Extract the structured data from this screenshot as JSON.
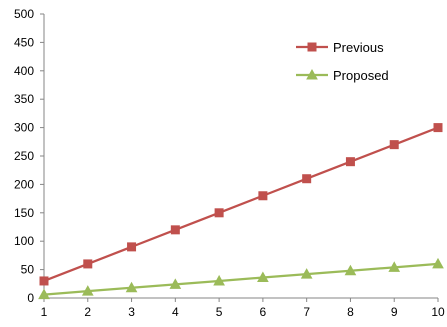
{
  "chart_data": {
    "type": "line",
    "x": [
      1,
      2,
      3,
      4,
      5,
      6,
      7,
      8,
      9,
      10
    ],
    "xlim": [
      1,
      10
    ],
    "ylim": [
      0,
      500
    ],
    "y_ticks": [
      0,
      50,
      100,
      150,
      200,
      250,
      300,
      350,
      400,
      450,
      500
    ],
    "x_ticks": [
      1,
      2,
      3,
      4,
      5,
      6,
      7,
      8,
      9,
      10
    ],
    "grid": false,
    "legend_position": "top-right",
    "series": [
      {
        "name": "Previous",
        "marker": "square",
        "color": "#c0504d",
        "values": [
          30,
          60,
          90,
          120,
          150,
          180,
          210,
          240,
          270,
          300
        ]
      },
      {
        "name": "Proposed",
        "marker": "triangle",
        "color": "#9bbb59",
        "values": [
          6,
          12,
          18,
          24,
          30,
          36,
          42,
          48,
          54,
          60
        ]
      }
    ]
  }
}
